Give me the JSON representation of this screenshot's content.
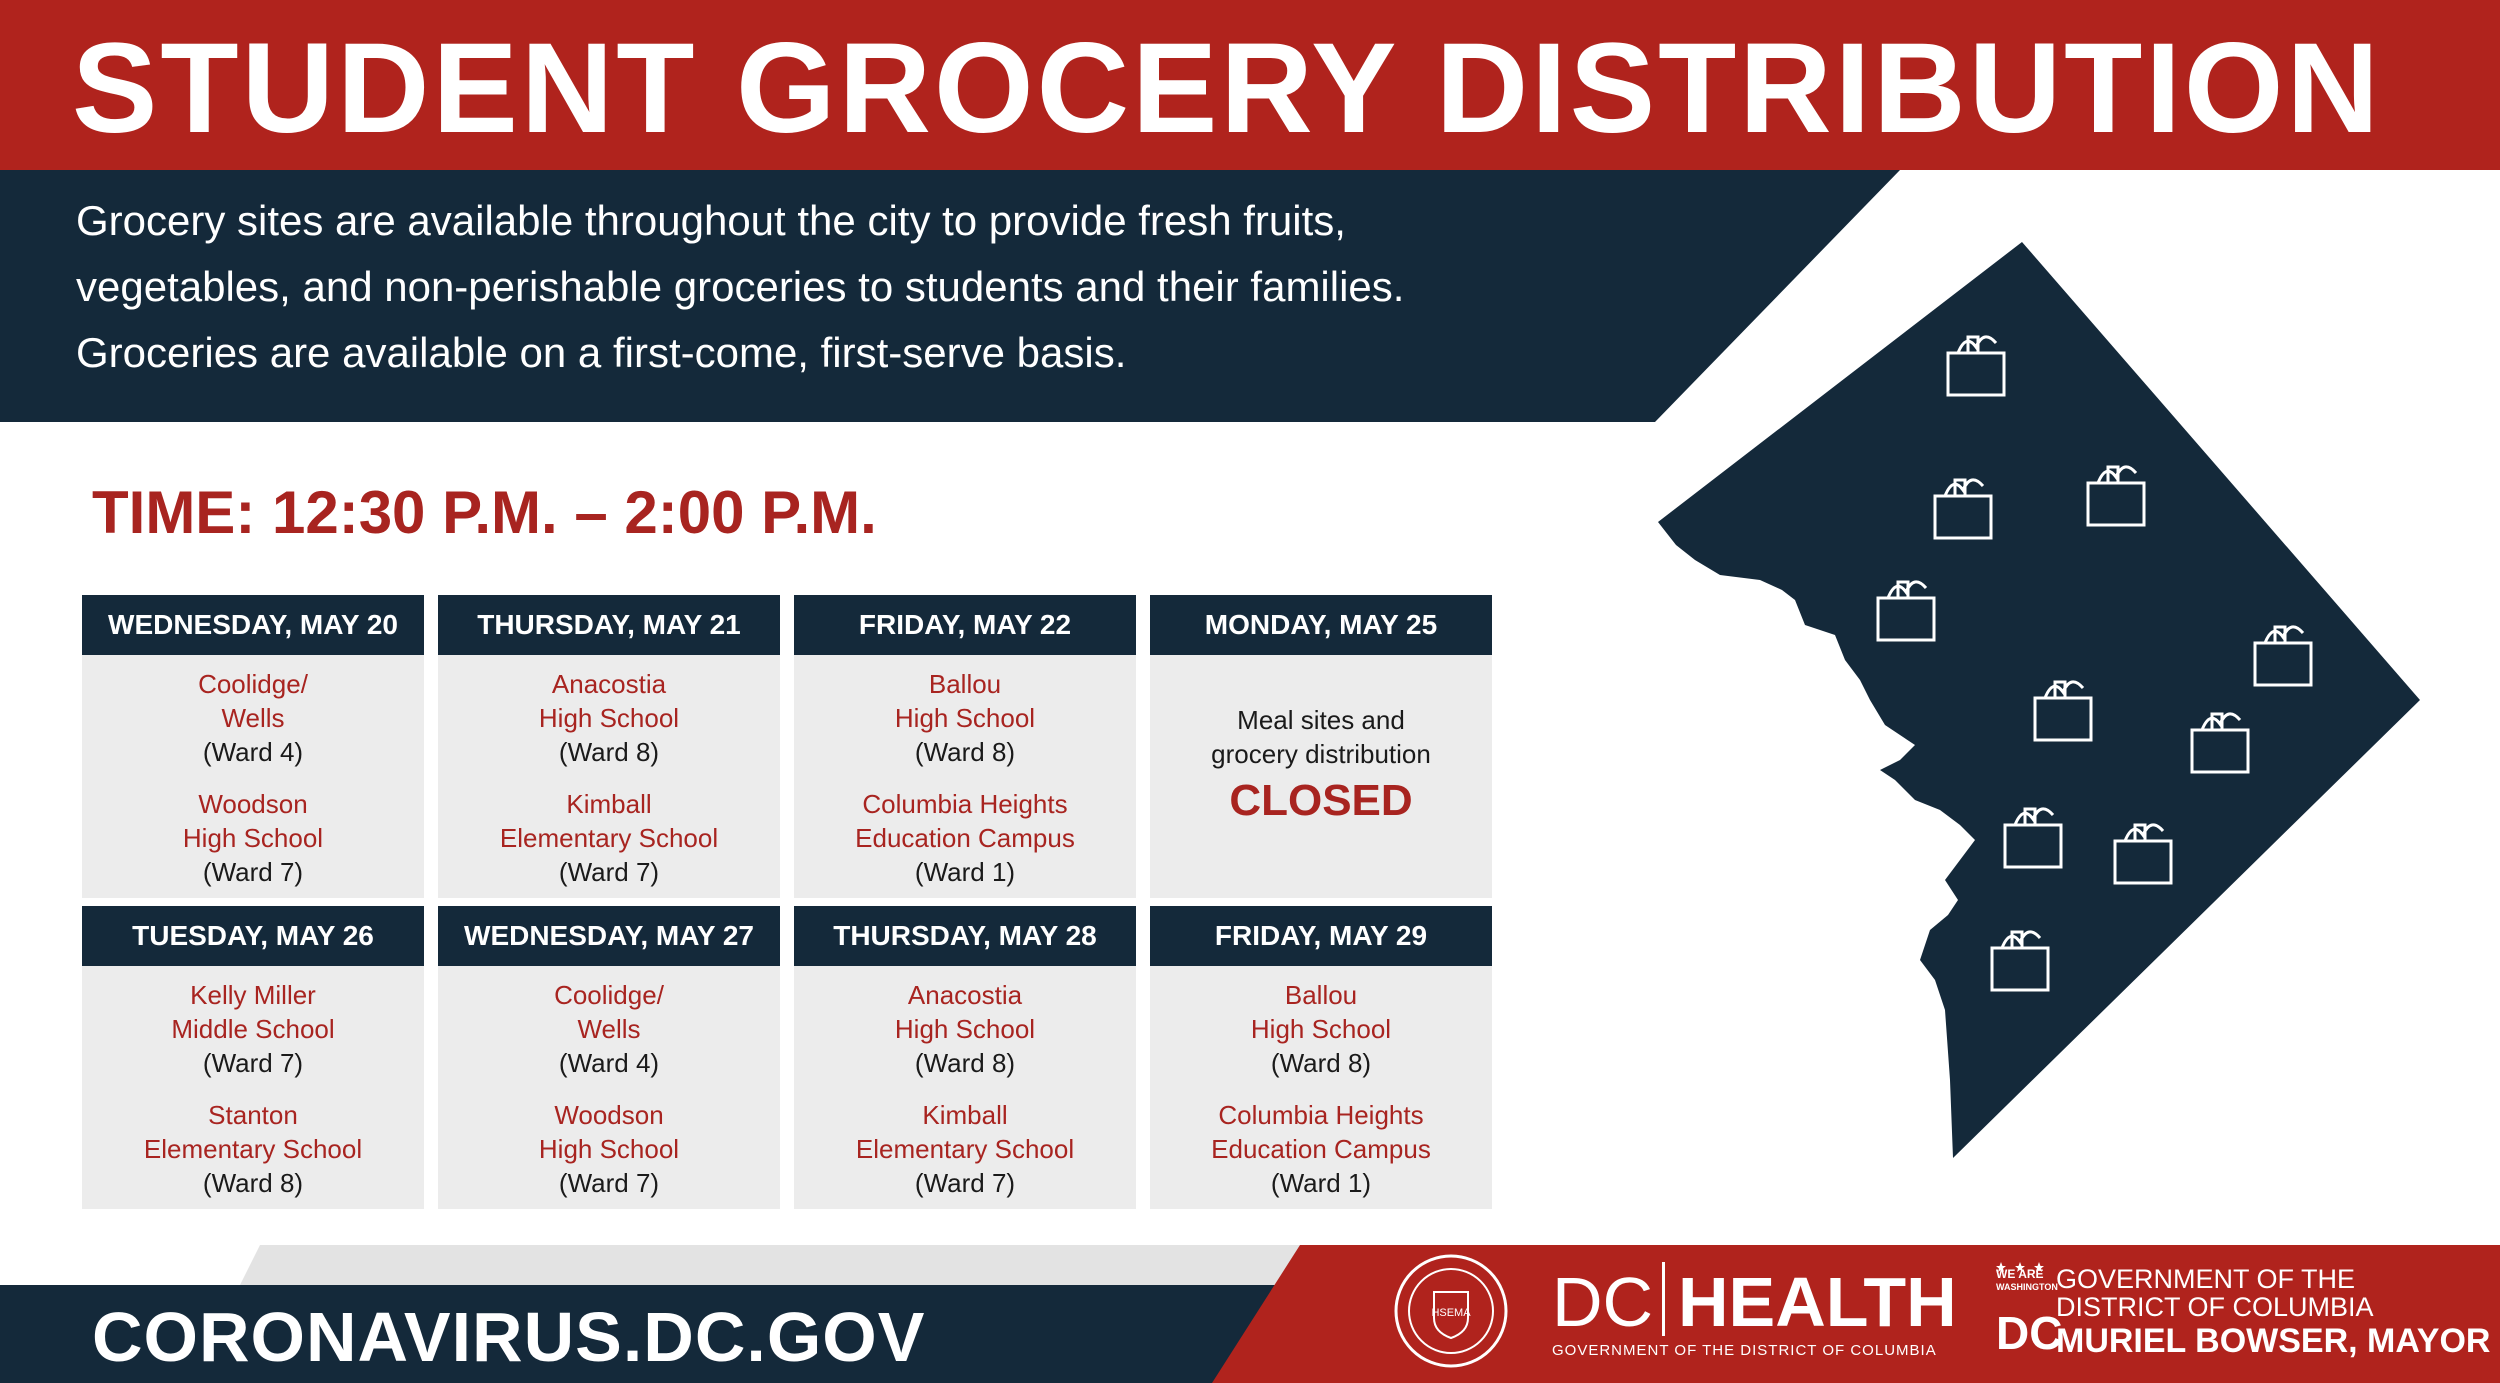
{
  "title": "STUDENT GROCERY DISTRIBUTION",
  "intro_lines": [
    "Grocery sites are available throughout the city to provide fresh fruits,",
    "vegetables, and non-perishable groceries to students and their families.",
    "Groceries are available on a first-come, first-serve basis."
  ],
  "time": "TIME: 12:30 P.M. – 2:00 P.M.",
  "schedule": [
    {
      "day": "WEDNESDAY, MAY 20",
      "sites": [
        {
          "name1": "Coolidge/",
          "name2": "Wells",
          "ward": "(Ward 4)"
        },
        {
          "name1": "Woodson",
          "name2": "High School",
          "ward": "(Ward 7)"
        }
      ]
    },
    {
      "day": "THURSDAY, MAY 21",
      "sites": [
        {
          "name1": "Anacostia",
          "name2": "High School",
          "ward": "(Ward 8)"
        },
        {
          "name1": "Kimball",
          "name2": "Elementary School",
          "ward": "(Ward 7)"
        }
      ]
    },
    {
      "day": "FRIDAY, MAY 22",
      "sites": [
        {
          "name1": "Ballou",
          "name2": "High School",
          "ward": "(Ward 8)"
        },
        {
          "name1": "Columbia Heights",
          "name2": "Education Campus",
          "ward": "(Ward 1)"
        }
      ]
    },
    {
      "day": "MONDAY, MAY 25",
      "closed_msg_1": "Meal sites and",
      "closed_msg_2": "grocery distribution",
      "closed_word": "CLOSED"
    },
    {
      "day": "TUESDAY, MAY 26",
      "sites": [
        {
          "name1": "Kelly Miller",
          "name2": "Middle School",
          "ward": "(Ward 7)"
        },
        {
          "name1": "Stanton",
          "name2": "Elementary School",
          "ward": "(Ward 8)"
        }
      ]
    },
    {
      "day": "WEDNESDAY, MAY 27",
      "sites": [
        {
          "name1": "Coolidge/",
          "name2": "Wells",
          "ward": "(Ward 4)"
        },
        {
          "name1": "Woodson",
          "name2": "High School",
          "ward": "(Ward 7)"
        }
      ]
    },
    {
      "day": "THURSDAY, MAY 28",
      "sites": [
        {
          "name1": "Anacostia",
          "name2": "High School",
          "ward": "(Ward 8)"
        },
        {
          "name1": "Kimball",
          "name2": "Elementary School",
          "ward": "(Ward 7)"
        }
      ]
    },
    {
      "day": "FRIDAY, MAY 29",
      "sites": [
        {
          "name1": "Ballou",
          "name2": "High School",
          "ward": "(Ward 8)"
        },
        {
          "name1": "Columbia Heights",
          "name2": "Education Campus",
          "ward": "(Ward 1)"
        }
      ]
    }
  ],
  "footer": {
    "url": "CORONAVIRUS.DC.GOV",
    "seal_label": "HSEMA",
    "dc": "DC",
    "health": "HEALTH",
    "health_sub": "GOVERNMENT OF THE DISTRICT OF COLUMBIA",
    "we_are_1": "WE ARE",
    "we_are_2": "WASHINGTON",
    "dc_mark": "DC",
    "gov_line1": "GOVERNMENT OF THE",
    "gov_line2": "DISTRICT OF COLUMBIA",
    "mayor": "MURIEL BOWSER, MAYOR"
  },
  "colors": {
    "red": "#b0231d",
    "navy": "#14293a",
    "cell": "#ececec"
  },
  "map_icons": "grocery-bag-icon"
}
